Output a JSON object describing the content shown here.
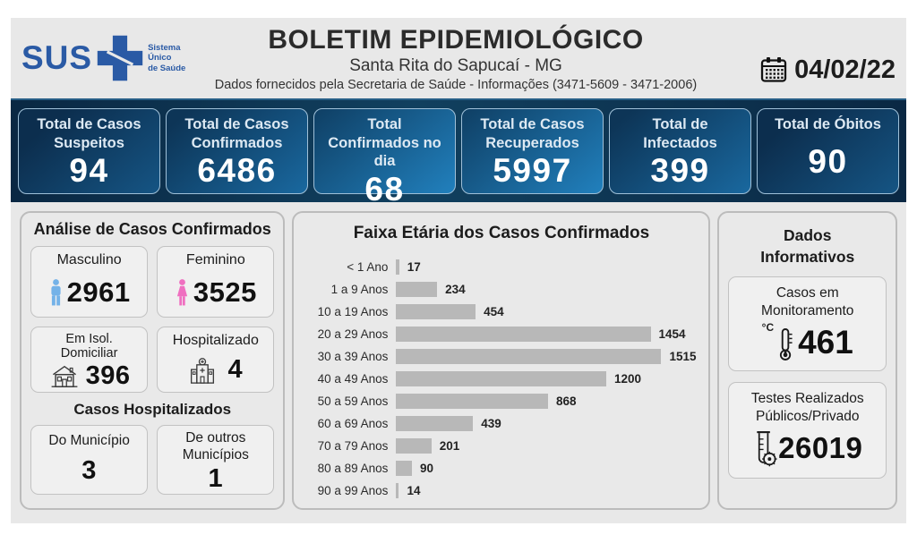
{
  "header": {
    "logo_text": "SUS",
    "logo_tagline_1": "Sistema",
    "logo_tagline_2": "Único",
    "logo_tagline_3": "de Saúde",
    "title": "BOLETIM EPIDEMIOLÓGICO",
    "subtitle": "Santa Rita do Sapucaí - MG",
    "info_line": "Dados fornecidos pela Secretaria de Saúde - Informações (3471-5609 - 3471-2006)",
    "date": "04/02/22"
  },
  "summary_cards": [
    {
      "label": "Total de Casos Suspeitos",
      "value": "94"
    },
    {
      "label": "Total de Casos Confirmados",
      "value": "6486"
    },
    {
      "label": "Total Confirmados no dia",
      "value": "68"
    },
    {
      "label": "Total de Casos Recuperados",
      "value": "5997"
    },
    {
      "label": "Total de Infectados",
      "value": "399"
    },
    {
      "label": "Total de Óbitos",
      "value": "90"
    }
  ],
  "analysis": {
    "title": "Análise de Casos Confirmados",
    "masculino": {
      "label": "Masculino",
      "value": "2961"
    },
    "feminino": {
      "label": "Feminino",
      "value": "3525"
    },
    "isolamento": {
      "label_line1": "Em Isol.",
      "label_line2": "Domiciliar",
      "value": "396"
    },
    "hospitalizado": {
      "label": "Hospitalizado",
      "value": "4"
    },
    "hospitalizados_title": "Casos Hospitalizados",
    "do_municipio": {
      "label": "Do Município",
      "value": "3"
    },
    "outros_municipios": {
      "label_line1": "De outros",
      "label_line2": "Municípios",
      "value": "1"
    }
  },
  "chart_data": {
    "type": "bar",
    "orientation": "horizontal",
    "title": "Faixa Etária dos Casos Confirmados",
    "categories": [
      "< 1 Ano",
      "1 a 9 Anos",
      "10 a 19 Anos",
      "20 a 29 Anos",
      "30 a 39 Anos",
      "40 a 49 Anos",
      "50 a 59 Anos",
      "60 a 69 Anos",
      "70 a 79 Anos",
      "80 a 89 Anos",
      "90 a 99 Anos"
    ],
    "values": [
      17,
      234,
      454,
      1454,
      1515,
      1200,
      868,
      439,
      201,
      90,
      14
    ],
    "xlim": [
      0,
      1515
    ],
    "bar_color": "#b8b8b8",
    "value_labels": true,
    "grid": false,
    "legend": false
  },
  "info_panel": {
    "title_line1": "Dados",
    "title_line2": "Informativos",
    "monitoramento": {
      "label_line1": "Casos em",
      "label_line2": "Monitoramento",
      "unit": "°C",
      "value": "461"
    },
    "testes": {
      "label_line1": "Testes Realizados",
      "label_line2": "Públicos/Privado",
      "value": "26019"
    }
  },
  "colors": {
    "background": "#e8e8e8",
    "accent_blue": "#2a5aa5",
    "stats_bar_navy": "#0a2843",
    "stat_card_border": "#9fc0d8",
    "chart_bar": "#b8b8b8",
    "male_icon": "#74b2e8",
    "female_icon": "#ef6fc0"
  }
}
